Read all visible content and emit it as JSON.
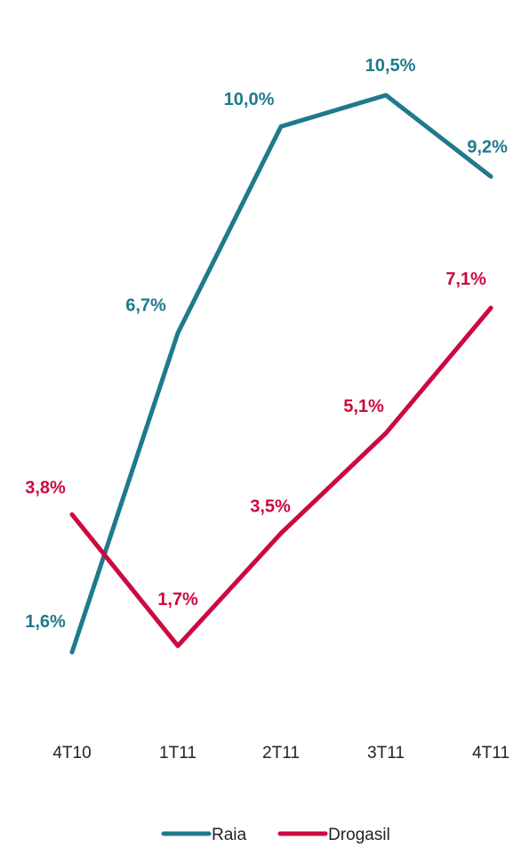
{
  "chart_data": {
    "type": "line",
    "categories": [
      "4T10",
      "1T11",
      "2T11",
      "3T11",
      "4T11"
    ],
    "series": [
      {
        "name": "Raia",
        "color": "#1f7a8c",
        "values": [
          1.6,
          6.7,
          10.0,
          10.5,
          9.2
        ],
        "labels": [
          "1,6%",
          "6,7%",
          "10,0%",
          "10,5%",
          "9,2%"
        ]
      },
      {
        "name": "Drogasil",
        "color": "#cc0a3f",
        "values": [
          3.8,
          1.7,
          3.5,
          5.1,
          7.1
        ],
        "labels": [
          "3,8%",
          "1,7%",
          "3,5%",
          "5,1%",
          "7,1%"
        ]
      }
    ],
    "legend_position": "bottom",
    "grid": false,
    "ylim": [
      -1,
      12
    ]
  }
}
